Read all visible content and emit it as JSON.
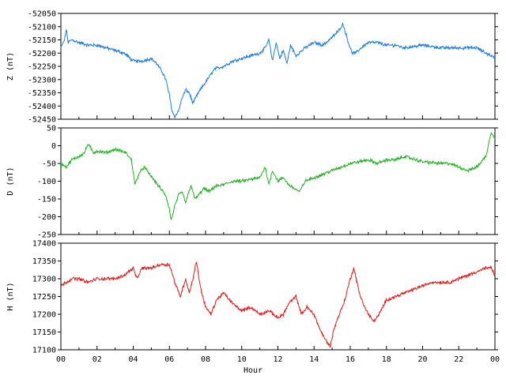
{
  "chart_data": [
    {
      "type": "line",
      "id": "z",
      "ylabel": "Z (nT)",
      "ylim": [
        -52450,
        -52050
      ],
      "yticks": [
        -52050,
        -52100,
        -52150,
        -52200,
        -52250,
        -52300,
        -52350,
        -52400,
        -52450
      ],
      "color": "#1c7ee0",
      "series": [
        {
          "x": [
            0,
            0.2,
            0.3,
            0.4,
            0.6,
            1,
            1.5,
            2,
            2.5,
            3,
            3.5,
            4,
            4.5,
            5,
            5.3,
            5.6,
            5.8,
            6,
            6.15,
            6.3,
            6.5,
            6.7,
            6.9,
            7.1,
            7.3,
            7.6,
            7.9,
            8.2,
            8.5,
            9,
            9.5,
            10,
            10.5,
            11,
            11.3,
            11.5,
            11.7,
            11.9,
            12.1,
            12.3,
            12.5,
            12.7,
            13,
            13.5,
            14,
            14.5,
            15,
            15.3,
            15.6,
            15.9,
            16.1,
            16.3,
            16.6,
            17,
            17.5,
            18,
            18.5,
            19,
            20,
            21,
            22,
            23,
            23.5,
            23.8,
            24
          ],
          "y": [
            -52180,
            -52150,
            -52110,
            -52160,
            -52150,
            -52160,
            -52170,
            -52170,
            -52180,
            -52190,
            -52200,
            -52230,
            -52230,
            -52220,
            -52240,
            -52270,
            -52300,
            -52360,
            -52420,
            -52440,
            -52420,
            -52370,
            -52340,
            -52350,
            -52390,
            -52350,
            -52320,
            -52290,
            -52260,
            -52250,
            -52230,
            -52220,
            -52210,
            -52200,
            -52180,
            -52150,
            -52230,
            -52160,
            -52220,
            -52190,
            -52240,
            -52170,
            -52210,
            -52180,
            -52160,
            -52170,
            -52140,
            -52120,
            -52090,
            -52160,
            -52200,
            -52200,
            -52180,
            -52160,
            -52160,
            -52170,
            -52170,
            -52180,
            -52170,
            -52180,
            -52180,
            -52180,
            -52200,
            -52210,
            -52220
          ]
        }
      ]
    },
    {
      "type": "line",
      "id": "d",
      "ylabel": "D (nT)",
      "ylim": [
        -250,
        50
      ],
      "yticks": [
        50,
        0,
        -50,
        -100,
        -150,
        -200,
        -250
      ],
      "color": "#1fb51f",
      "series": [
        {
          "x": [
            0,
            0.3,
            0.6,
            1,
            1.3,
            1.5,
            1.8,
            2,
            2.5,
            3,
            3.3,
            3.6,
            3.9,
            4.1,
            4.3,
            4.6,
            4.9,
            5.2,
            5.5,
            5.8,
            6,
            6.1,
            6.3,
            6.5,
            6.7,
            6.9,
            7.2,
            7.4,
            7.6,
            7.9,
            8.2,
            8.5,
            9,
            9.5,
            10,
            10.5,
            11,
            11.3,
            11.5,
            11.7,
            12,
            12.3,
            12.6,
            12.9,
            13.2,
            13.5,
            14,
            14.5,
            15,
            15.5,
            16,
            16.5,
            17,
            17.5,
            18,
            18.5,
            19,
            20,
            21,
            21.5,
            22,
            22.5,
            23,
            23.5,
            23.8,
            24
          ],
          "y": [
            -50,
            -60,
            -40,
            -30,
            -20,
            5,
            -20,
            -15,
            -20,
            -10,
            -15,
            -20,
            -40,
            -110,
            -80,
            -60,
            -80,
            -100,
            -120,
            -140,
            -180,
            -210,
            -170,
            -140,
            -130,
            -160,
            -110,
            -150,
            -140,
            -120,
            -130,
            -115,
            -110,
            -100,
            -100,
            -95,
            -90,
            -60,
            -110,
            -70,
            -100,
            -90,
            -110,
            -120,
            -130,
            -100,
            -90,
            -80,
            -70,
            -60,
            -50,
            -45,
            -40,
            -50,
            -40,
            -40,
            -30,
            -45,
            -50,
            -50,
            -60,
            -70,
            -60,
            -30,
            40,
            20
          ]
        }
      ]
    },
    {
      "type": "line",
      "id": "h",
      "ylabel": "H (nT)",
      "ylim": [
        17100,
        17400
      ],
      "yticks": [
        17400,
        17350,
        17300,
        17250,
        17200,
        17150,
        17100
      ],
      "color": "#e61919",
      "series": [
        {
          "x": [
            0,
            0.3,
            0.6,
            1,
            1.5,
            2,
            2.5,
            3,
            3.5,
            4,
            4.2,
            4.5,
            5,
            5.5,
            6,
            6.3,
            6.6,
            6.9,
            7.1,
            7.3,
            7.5,
            7.7,
            8,
            8.3,
            8.6,
            9,
            9.5,
            10,
            10.5,
            11,
            11.5,
            12,
            12.3,
            12.6,
            13,
            13.3,
            13.6,
            14,
            14.3,
            14.6,
            14.9,
            15.1,
            15.4,
            15.7,
            16,
            16.2,
            16.5,
            16.8,
            17,
            17.3,
            17.6,
            18,
            18.5,
            19,
            19.5,
            20,
            20.5,
            21,
            21.5,
            22,
            22.5,
            23,
            23.5,
            23.8,
            24
          ],
          "y": [
            17280,
            17290,
            17300,
            17300,
            17290,
            17300,
            17300,
            17300,
            17310,
            17330,
            17300,
            17330,
            17330,
            17340,
            17340,
            17290,
            17250,
            17300,
            17260,
            17300,
            17350,
            17280,
            17220,
            17200,
            17240,
            17260,
            17230,
            17210,
            17220,
            17200,
            17210,
            17190,
            17200,
            17230,
            17250,
            17200,
            17220,
            17200,
            17160,
            17130,
            17110,
            17160,
            17200,
            17240,
            17300,
            17330,
            17260,
            17220,
            17200,
            17180,
            17200,
            17240,
            17250,
            17260,
            17270,
            17280,
            17290,
            17290,
            17290,
            17300,
            17310,
            17320,
            17330,
            17330,
            17310
          ]
        }
      ]
    }
  ],
  "xaxis": {
    "label": "Hour",
    "xlim": [
      0,
      24
    ],
    "ticklabels": [
      "00",
      "02",
      "04",
      "06",
      "08",
      "10",
      "12",
      "14",
      "16",
      "18",
      "20",
      "22",
      "00"
    ]
  }
}
